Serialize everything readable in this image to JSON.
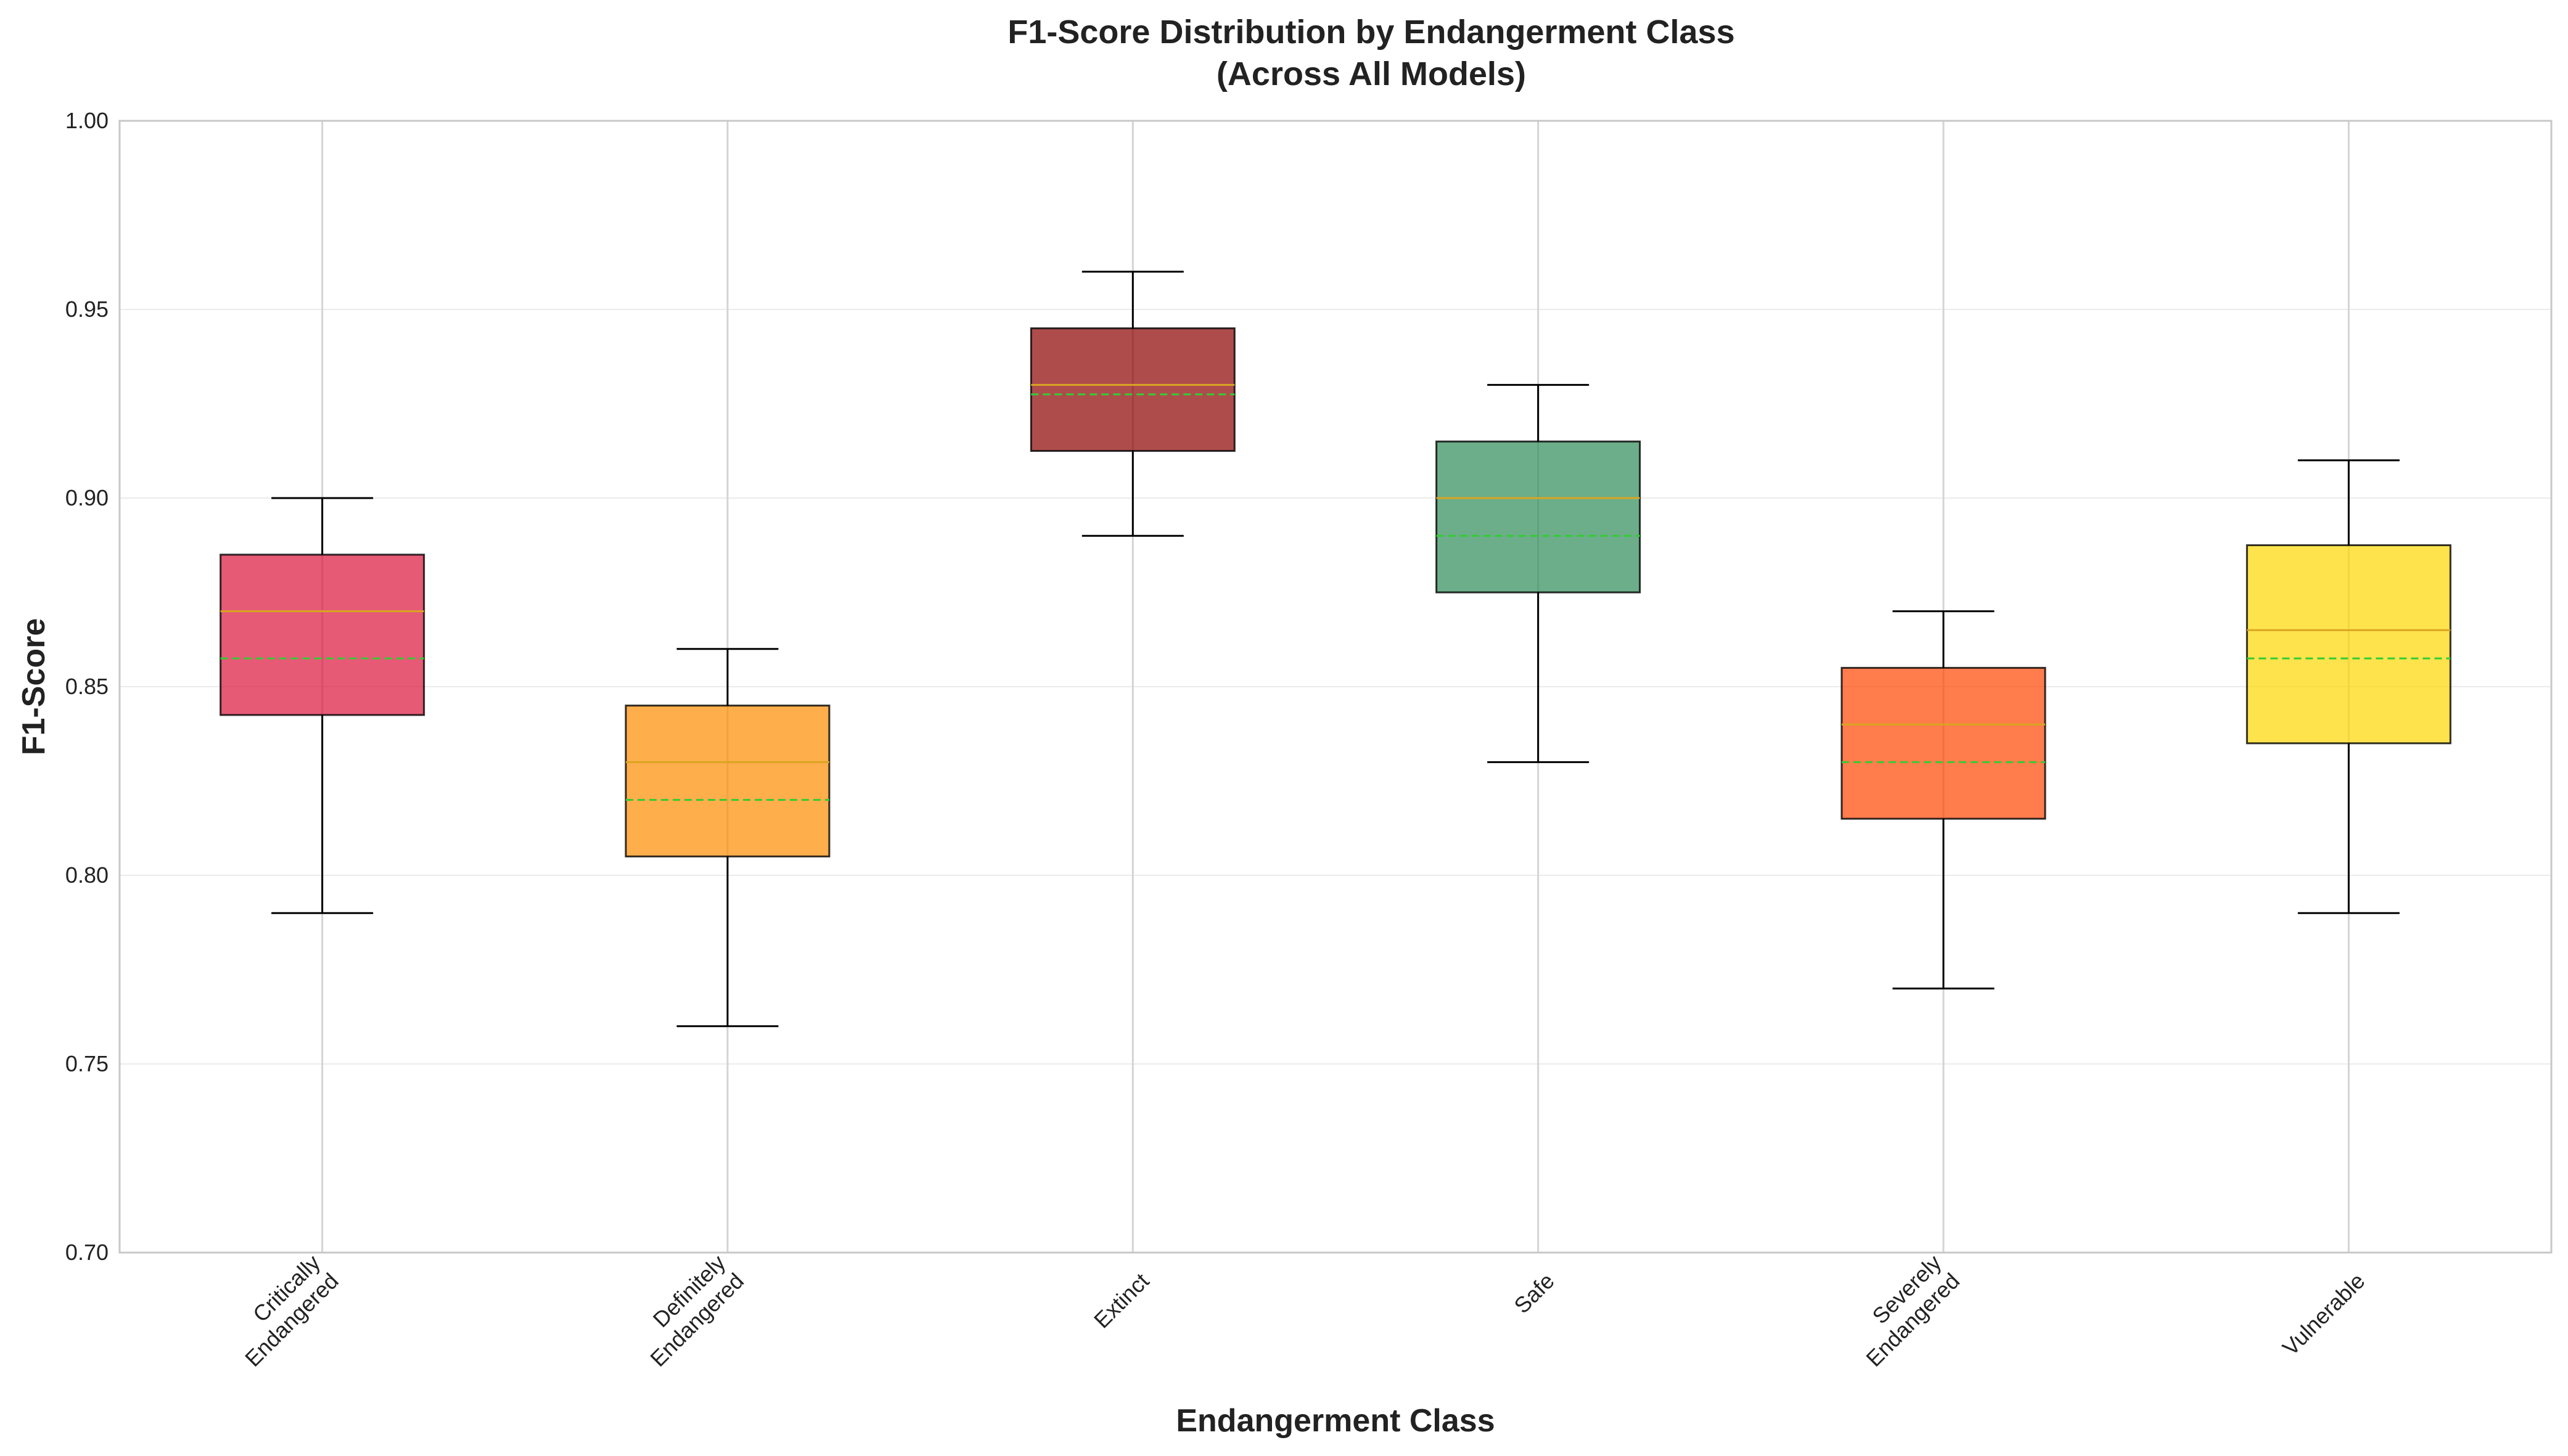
{
  "chart_data": {
    "type": "box",
    "title_lines": [
      "F1-Score Distribution by Endangerment Class",
      "(Across All Models)"
    ],
    "xlabel": "Endangerment Class",
    "ylabel": "F1-Score",
    "ylim": [
      0.7,
      1.0
    ],
    "yticks": [
      "0.70",
      "0.75",
      "0.80",
      "0.85",
      "0.90",
      "0.95",
      "1.00"
    ],
    "grid": true,
    "categories": [
      {
        "label_lines": [
          "Critically",
          "Endangered"
        ],
        "whisker_low": 0.79,
        "q1": 0.8425,
        "median": 0.87,
        "mean": 0.8575,
        "q3": 0.885,
        "whisker_high": 0.9,
        "color": "#DC143C"
      },
      {
        "label_lines": [
          "Definitely",
          "Endangered"
        ],
        "whisker_low": 0.76,
        "q1": 0.805,
        "median": 0.83,
        "mean": 0.82,
        "q3": 0.845,
        "whisker_high": 0.86,
        "color": "#FF8C00"
      },
      {
        "label_lines": [
          "Extinct"
        ],
        "whisker_low": 0.89,
        "q1": 0.9125,
        "median": 0.93,
        "mean": 0.9275,
        "q3": 0.945,
        "whisker_high": 0.96,
        "color": "#8B0000"
      },
      {
        "label_lines": [
          "Safe"
        ],
        "whisker_low": 0.83,
        "q1": 0.875,
        "median": 0.9,
        "mean": 0.89,
        "q3": 0.915,
        "whisker_high": 0.93,
        "color": "#2E8B57"
      },
      {
        "label_lines": [
          "Severely",
          "Endangered"
        ],
        "whisker_low": 0.77,
        "q1": 0.815,
        "median": 0.84,
        "mean": 0.83,
        "q3": 0.855,
        "whisker_high": 0.87,
        "color": "#FF4500"
      },
      {
        "label_lines": [
          "Vulnerable"
        ],
        "whisker_low": 0.79,
        "q1": 0.835,
        "median": 0.865,
        "mean": 0.8575,
        "q3": 0.8875,
        "whisker_high": 0.91,
        "color": "#FFD700"
      }
    ],
    "median_color": "#DAA520",
    "mean_color": "#32CD32",
    "box_alpha": 0.7
  }
}
